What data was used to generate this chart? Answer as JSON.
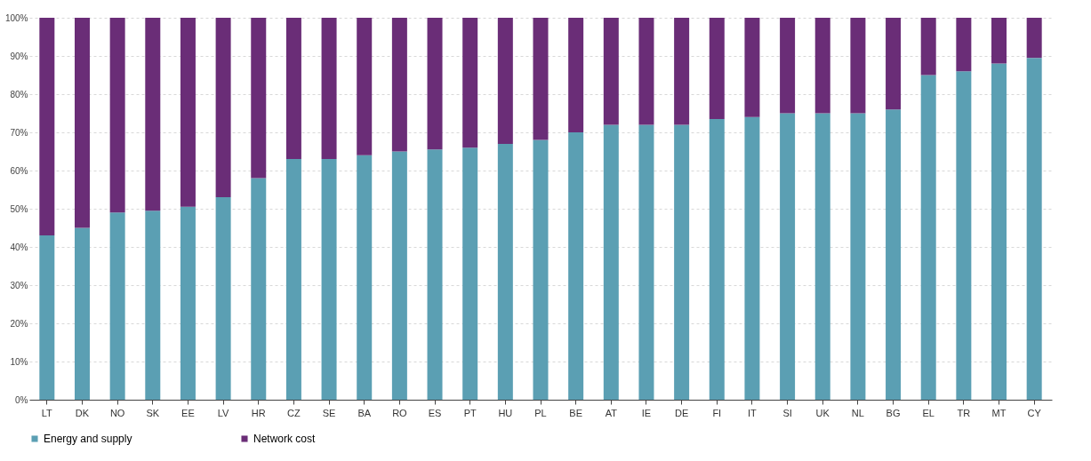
{
  "chart_data": {
    "type": "bar",
    "stacked": true,
    "categories": [
      "LT",
      "DK",
      "NO",
      "SK",
      "EE",
      "LV",
      "HR",
      "CZ",
      "SE",
      "BA",
      "RO",
      "ES",
      "PT",
      "HU",
      "PL",
      "BE",
      "AT",
      "IE",
      "DE",
      "FI",
      "IT",
      "SI",
      "UK",
      "NL",
      "BG",
      "EL",
      "TR",
      "MT",
      "CY"
    ],
    "series": [
      {
        "name": "Energy and supply",
        "color": "#5b9fb3",
        "values": [
          43,
          45,
          49,
          49.5,
          50.5,
          53,
          58,
          63,
          63,
          64,
          65,
          65.5,
          66,
          67,
          68,
          70,
          72,
          72,
          72,
          73.5,
          74,
          75,
          75,
          75,
          76,
          85,
          86,
          88,
          89.5
        ]
      },
      {
        "name": "Network cost",
        "color": "#6a2d77",
        "values": [
          57,
          55,
          51,
          50.5,
          49.5,
          47,
          42,
          37,
          37,
          36,
          35,
          34.5,
          34,
          33,
          32,
          30,
          28,
          28,
          28,
          26.5,
          26,
          25,
          25,
          25,
          24,
          15,
          14,
          12,
          10.5
        ]
      }
    ],
    "ylim": [
      0,
      100
    ],
    "yticks": [
      {
        "value": 0,
        "label": "0%"
      },
      {
        "value": 10,
        "label": "10%"
      },
      {
        "value": 20,
        "label": "20%"
      },
      {
        "value": 30,
        "label": "30%"
      },
      {
        "value": 40,
        "label": "40%"
      },
      {
        "value": 50,
        "label": "50%"
      },
      {
        "value": 60,
        "label": "60%"
      },
      {
        "value": 70,
        "label": "70%"
      },
      {
        "value": 80,
        "label": "80%"
      },
      {
        "value": 90,
        "label": "90%"
      },
      {
        "value": 100,
        "label": "100%"
      }
    ],
    "grid": "y",
    "legend": "bottom"
  }
}
